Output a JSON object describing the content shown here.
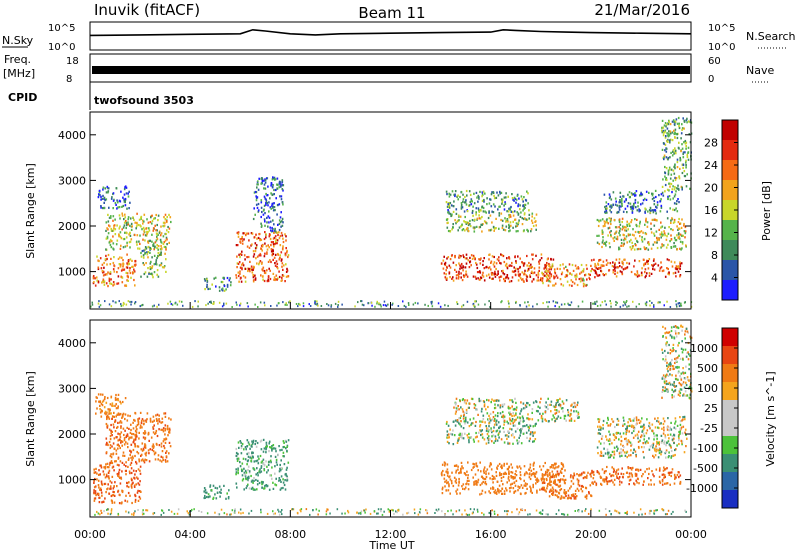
{
  "header": {
    "station": "Inuvik (fitACF)",
    "beam": "Beam 11",
    "date": "21/Mar/2016"
  },
  "noise_panel": {
    "left_label": "N.Sky",
    "right_label": "N.Search",
    "left_ticks": [
      "10^5",
      "10^0"
    ],
    "right_ticks": [
      "10^5",
      "10^0"
    ]
  },
  "freq_panel": {
    "left_label_top": "Freq.",
    "left_label_unit": "[MHz]",
    "right_label": "Nave",
    "left_ticks": [
      "18",
      "8"
    ],
    "right_ticks": [
      "60",
      "0"
    ]
  },
  "cpid": {
    "label": "CPID",
    "program": "twofsound 3503"
  },
  "x_axis": {
    "label": "Time UT",
    "ticks": [
      "00:00",
      "04:00",
      "08:00",
      "12:00",
      "16:00",
      "20:00",
      "00:00"
    ]
  },
  "colors": {
    "power": [
      "#1c1cff",
      "#2a55a8",
      "#3f8a5a",
      "#55b34a",
      "#c8d62a",
      "#f2a31c",
      "#f56a14",
      "#e42a10",
      "#c00000"
    ],
    "velocity": [
      "#1a2fc2",
      "#2b66a6",
      "#3a8f74",
      "#4cc23a",
      "#c8c8c8",
      "#c8c8c8",
      "#f5a41c",
      "#f07a14",
      "#e84512",
      "#d00000"
    ]
  },
  "chart_data": [
    {
      "type": "line",
      "title": "N.Sky / N.Search",
      "x_range_hours": [
        0,
        24
      ],
      "ylim_log10": [
        0,
        5
      ],
      "series": [
        {
          "name": "N.Sky",
          "x": [
            0,
            2,
            4,
            6,
            6.5,
            7,
            8,
            9,
            10,
            12,
            14,
            16,
            16.5,
            17,
            18,
            19,
            20,
            22,
            24
          ],
          "y_log10": [
            2.6,
            2.7,
            2.8,
            2.9,
            3.6,
            3.4,
            2.9,
            2.7,
            2.9,
            3.0,
            3.1,
            3.2,
            3.6,
            3.5,
            3.3,
            3.2,
            3.1,
            3.0,
            2.9
          ]
        }
      ]
    },
    {
      "type": "line",
      "title": "Freq. / Nave",
      "x_range_hours": [
        0,
        24
      ],
      "ylim": [
        8,
        18
      ],
      "series": [
        {
          "name": "Freq.",
          "x": [
            0,
            24
          ],
          "y": [
            11,
            11
          ]
        }
      ]
    },
    {
      "type": "heatmap",
      "ylabel": "Slant Range [km]",
      "xlabel": "Time UT",
      "colorbar_label": "Power [dB]",
      "colorbar_ticks": [
        "28",
        "24",
        "20",
        "16",
        "12",
        "8",
        "4"
      ],
      "y_ticks": [
        "1000",
        "2000",
        "3000",
        "4000"
      ],
      "ylim": [
        180,
        4500
      ],
      "xlim_hours": [
        0,
        24
      ],
      "echo_regions": [
        {
          "t0": 0.1,
          "t1": 1.8,
          "r0": 700,
          "r1": 1400,
          "level": 0.7
        },
        {
          "t0": 0.6,
          "t1": 3.2,
          "r0": 1500,
          "r1": 2300,
          "level": 0.5
        },
        {
          "t0": 0.3,
          "t1": 1.6,
          "r0": 2400,
          "r1": 2900,
          "level": 0.2
        },
        {
          "t0": 2.0,
          "t1": 3.0,
          "r0": 900,
          "r1": 1600,
          "level": 0.4
        },
        {
          "t0": 4.5,
          "t1": 5.6,
          "r0": 600,
          "r1": 900,
          "level": 0.3
        },
        {
          "t0": 5.8,
          "t1": 7.9,
          "r0": 800,
          "r1": 1900,
          "level": 0.75
        },
        {
          "t0": 6.5,
          "t1": 7.7,
          "r0": 1900,
          "r1": 3100,
          "level": 0.2
        },
        {
          "t0": 14.0,
          "t1": 18.5,
          "r0": 800,
          "r1": 1400,
          "level": 0.8
        },
        {
          "t0": 14.2,
          "t1": 17.8,
          "r0": 1900,
          "r1": 2300,
          "level": 0.45
        },
        {
          "t0": 14.2,
          "t1": 17.5,
          "r0": 2300,
          "r1": 2800,
          "level": 0.3
        },
        {
          "t0": 18.0,
          "t1": 20.0,
          "r0": 700,
          "r1": 1200,
          "level": 0.65
        },
        {
          "t0": 20.0,
          "t1": 23.6,
          "r0": 900,
          "r1": 1300,
          "level": 0.8
        },
        {
          "t0": 20.2,
          "t1": 23.8,
          "r0": 1500,
          "r1": 2200,
          "level": 0.5
        },
        {
          "t0": 20.5,
          "t1": 23.5,
          "r0": 2300,
          "r1": 2800,
          "level": 0.25
        },
        {
          "t0": 22.8,
          "t1": 24.0,
          "r0": 2800,
          "r1": 4400,
          "level": 0.35
        }
      ]
    },
    {
      "type": "heatmap",
      "ylabel": "Slant Range [km]",
      "xlabel": "Time UT",
      "colorbar_label": "Velocity [m s^-1]",
      "colorbar_ticks": [
        "1000",
        "500",
        "100",
        "25",
        "-25",
        "-100",
        "-500",
        "-1000"
      ],
      "y_ticks": [
        "1000",
        "2000",
        "3000",
        "4000"
      ],
      "ylim": [
        180,
        4500
      ],
      "xlim_hours": [
        0,
        24
      ],
      "echo_regions": [
        {
          "t0": 0.1,
          "t1": 2.0,
          "r0": 500,
          "r1": 1400,
          "vel": -500
        },
        {
          "t0": 0.6,
          "t1": 3.2,
          "r0": 1400,
          "r1": 2500,
          "vel": -400
        },
        {
          "t0": 0.2,
          "t1": 1.4,
          "r0": 2400,
          "r1": 2900,
          "vel": -200
        },
        {
          "t0": 4.5,
          "t1": 5.6,
          "r0": 600,
          "r1": 900,
          "vel": 200
        },
        {
          "t0": 5.8,
          "t1": 7.9,
          "r0": 800,
          "r1": 1900,
          "vel": 150
        },
        {
          "t0": 14.0,
          "t1": 19.0,
          "r0": 700,
          "r1": 1400,
          "vel": -300
        },
        {
          "t0": 14.2,
          "t1": 17.8,
          "r0": 1800,
          "r1": 2300,
          "vel": 60
        },
        {
          "t0": 14.5,
          "t1": 19.5,
          "r0": 2300,
          "r1": 2800,
          "vel": 0
        },
        {
          "t0": 18.0,
          "t1": 20.0,
          "r0": 600,
          "r1": 1200,
          "vel": -400
        },
        {
          "t0": 20.0,
          "t1": 23.6,
          "r0": 900,
          "r1": 1300,
          "vel": -450
        },
        {
          "t0": 20.2,
          "t1": 23.8,
          "r0": 1500,
          "r1": 2400,
          "vel": 0
        },
        {
          "t0": 22.8,
          "t1": 24.0,
          "r0": 2800,
          "r1": 4400,
          "vel": 0
        }
      ]
    }
  ]
}
